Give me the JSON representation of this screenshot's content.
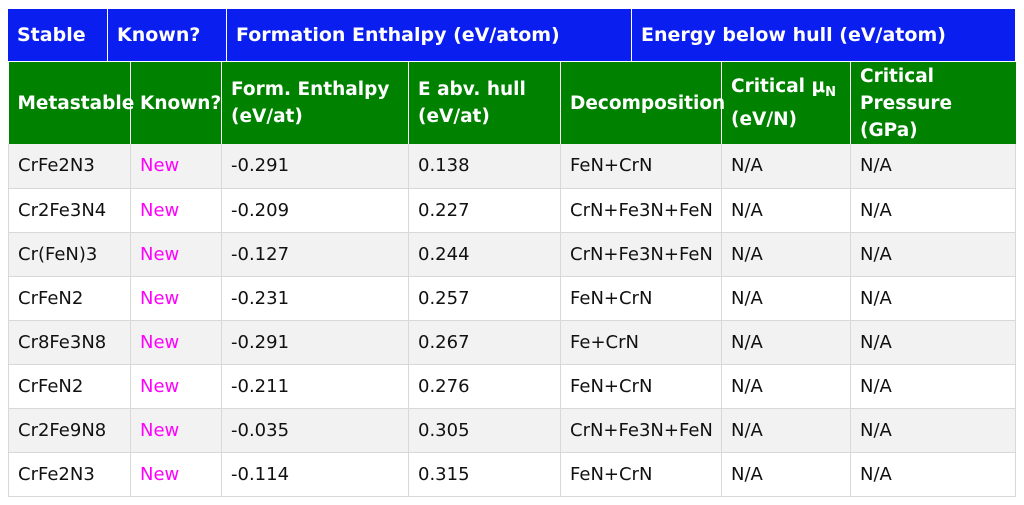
{
  "stable_header": {
    "col1": "Stable",
    "col2": "Known?",
    "col3": "Formation Enthalpy (eV/atom)",
    "col4": "Energy below hull (eV/atom)"
  },
  "metastable_header": {
    "col1": "Metastable",
    "col2": "Known?",
    "col3_line1": "Form. Enthalpy",
    "col3_line2": "(eV/at)",
    "col4_line1": "E abv. hull",
    "col4_line2": "(eV/at)",
    "col5": "Decomposition",
    "col6_prefix": "Critical μ",
    "col6_sub": "N",
    "col6_line2": "(eV/N)",
    "col7_line1": "Critical",
    "col7_line2": "Pressure (GPa)"
  },
  "rows": [
    {
      "formula": "CrFe2N3",
      "known": "New",
      "enthalpy": "-0.291",
      "hull": "0.138",
      "decomposition": "FeN+CrN",
      "mu": "N/A",
      "pressure": "N/A"
    },
    {
      "formula": "Cr2Fe3N4",
      "known": "New",
      "enthalpy": "-0.209",
      "hull": "0.227",
      "decomposition": "CrN+Fe3N+FeN",
      "mu": "N/A",
      "pressure": "N/A"
    },
    {
      "formula": "Cr(FeN)3",
      "known": "New",
      "enthalpy": "-0.127",
      "hull": "0.244",
      "decomposition": "CrN+Fe3N+FeN",
      "mu": "N/A",
      "pressure": "N/A"
    },
    {
      "formula": "CrFeN2",
      "known": "New",
      "enthalpy": "-0.231",
      "hull": "0.257",
      "decomposition": "FeN+CrN",
      "mu": "N/A",
      "pressure": "N/A"
    },
    {
      "formula": "Cr8Fe3N8",
      "known": "New",
      "enthalpy": "-0.291",
      "hull": "0.267",
      "decomposition": "Fe+CrN",
      "mu": "N/A",
      "pressure": "N/A"
    },
    {
      "formula": "CrFeN2",
      "known": "New",
      "enthalpy": "-0.211",
      "hull": "0.276",
      "decomposition": "FeN+CrN",
      "mu": "N/A",
      "pressure": "N/A"
    },
    {
      "formula": "Cr2Fe9N8",
      "known": "New",
      "enthalpy": "-0.035",
      "hull": "0.305",
      "decomposition": "CrN+Fe3N+FeN",
      "mu": "N/A",
      "pressure": "N/A"
    },
    {
      "formula": "CrFe2N3",
      "known": "New",
      "enthalpy": "-0.114",
      "hull": "0.315",
      "decomposition": "FeN+CrN",
      "mu": "N/A",
      "pressure": "N/A"
    }
  ],
  "colors": {
    "stable_header_bg": "#0a1ef0",
    "metastable_header_bg": "#008200",
    "known_new_text": "#ff00ff",
    "odd_row_bg": "#f2f2f2"
  }
}
